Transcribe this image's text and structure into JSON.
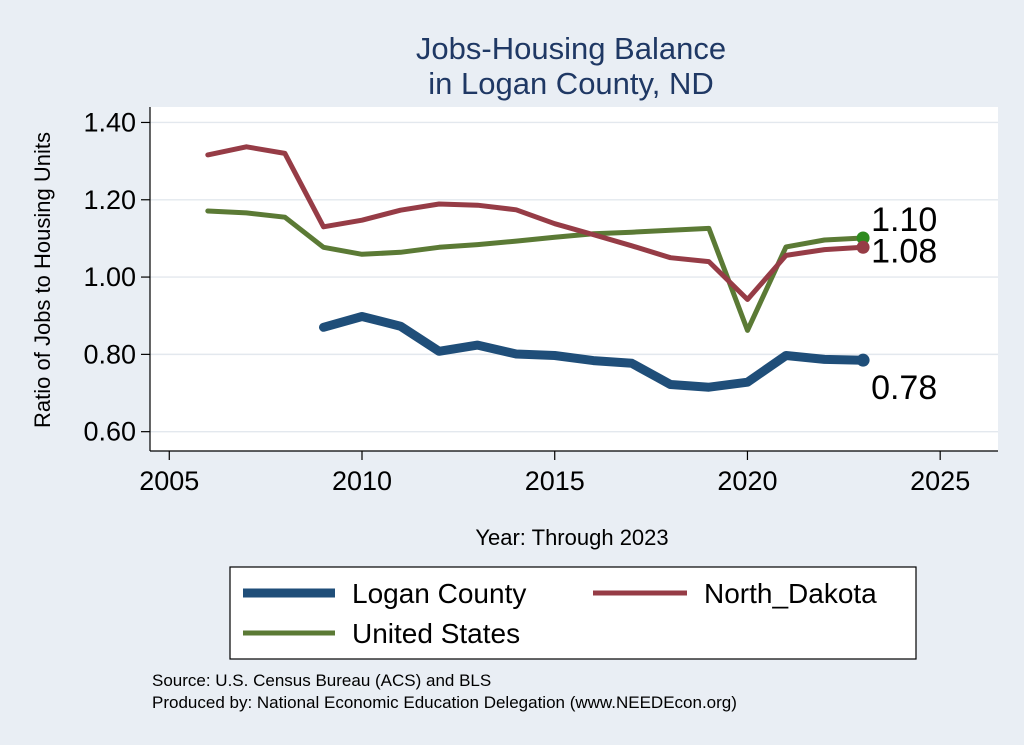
{
  "chart_data": {
    "type": "line",
    "title": [
      "Jobs-Housing Balance",
      "in Logan County, ND"
    ],
    "xlabel": "Year: Through 2023",
    "ylabel": "Ratio of Jobs to Housing Units",
    "xlim": [
      2004.5,
      2026.5
    ],
    "ylim": [
      0.55,
      1.44
    ],
    "xticks": [
      2005,
      2010,
      2015,
      2020,
      2025
    ],
    "yticks": [
      0.6,
      0.8,
      1.0,
      1.2,
      1.4
    ],
    "ytick_labels": [
      "0.60",
      "0.80",
      "1.00",
      "1.20",
      "1.40"
    ],
    "grid": true,
    "legend_position": "bottom",
    "series": [
      {
        "name": "Logan County",
        "color": "#1f4e79",
        "width": "thick",
        "x": [
          2009,
          2010,
          2011,
          2012,
          2013,
          2014,
          2015,
          2016,
          2017,
          2018,
          2019,
          2020,
          2021,
          2022,
          2023
        ],
        "values": [
          0.87,
          0.898,
          0.873,
          0.808,
          0.824,
          0.801,
          0.797,
          0.784,
          0.777,
          0.722,
          0.715,
          0.728,
          0.797,
          0.787,
          0.785
        ],
        "end_label": "0.78"
      },
      {
        "name": "North_Dakota",
        "color": "#963c46",
        "width": "medium",
        "x": [
          2006,
          2007,
          2008,
          2009,
          2010,
          2011,
          2012,
          2013,
          2014,
          2015,
          2016,
          2017,
          2018,
          2019,
          2020,
          2021,
          2022,
          2023
        ],
        "values": [
          1.316,
          1.337,
          1.32,
          1.13,
          1.147,
          1.173,
          1.189,
          1.186,
          1.174,
          1.138,
          1.11,
          1.081,
          1.05,
          1.04,
          0.942,
          1.056,
          1.071,
          1.077
        ],
        "end_label": "1.08"
      },
      {
        "name": "United States",
        "color": "#5b7a35",
        "width": "medium",
        "x": [
          2006,
          2007,
          2008,
          2009,
          2010,
          2011,
          2012,
          2013,
          2014,
          2015,
          2016,
          2017,
          2018,
          2019,
          2020,
          2021,
          2022,
          2023
        ],
        "values": [
          1.171,
          1.166,
          1.155,
          1.077,
          1.059,
          1.064,
          1.077,
          1.084,
          1.093,
          1.103,
          1.112,
          1.116,
          1.121,
          1.126,
          0.862,
          1.078,
          1.096,
          1.101
        ],
        "end_label": "1.10"
      }
    ],
    "end_marker_colors": {
      "Logan County": "#1f4e79",
      "North_Dakota": "#963c46",
      "United States": "#2e8b1e"
    },
    "notes": [
      "Source: U.S. Census Bureau (ACS) and BLS",
      "Produced by: National Economic Education Delegation (www.NEEDEcon.org)"
    ]
  }
}
